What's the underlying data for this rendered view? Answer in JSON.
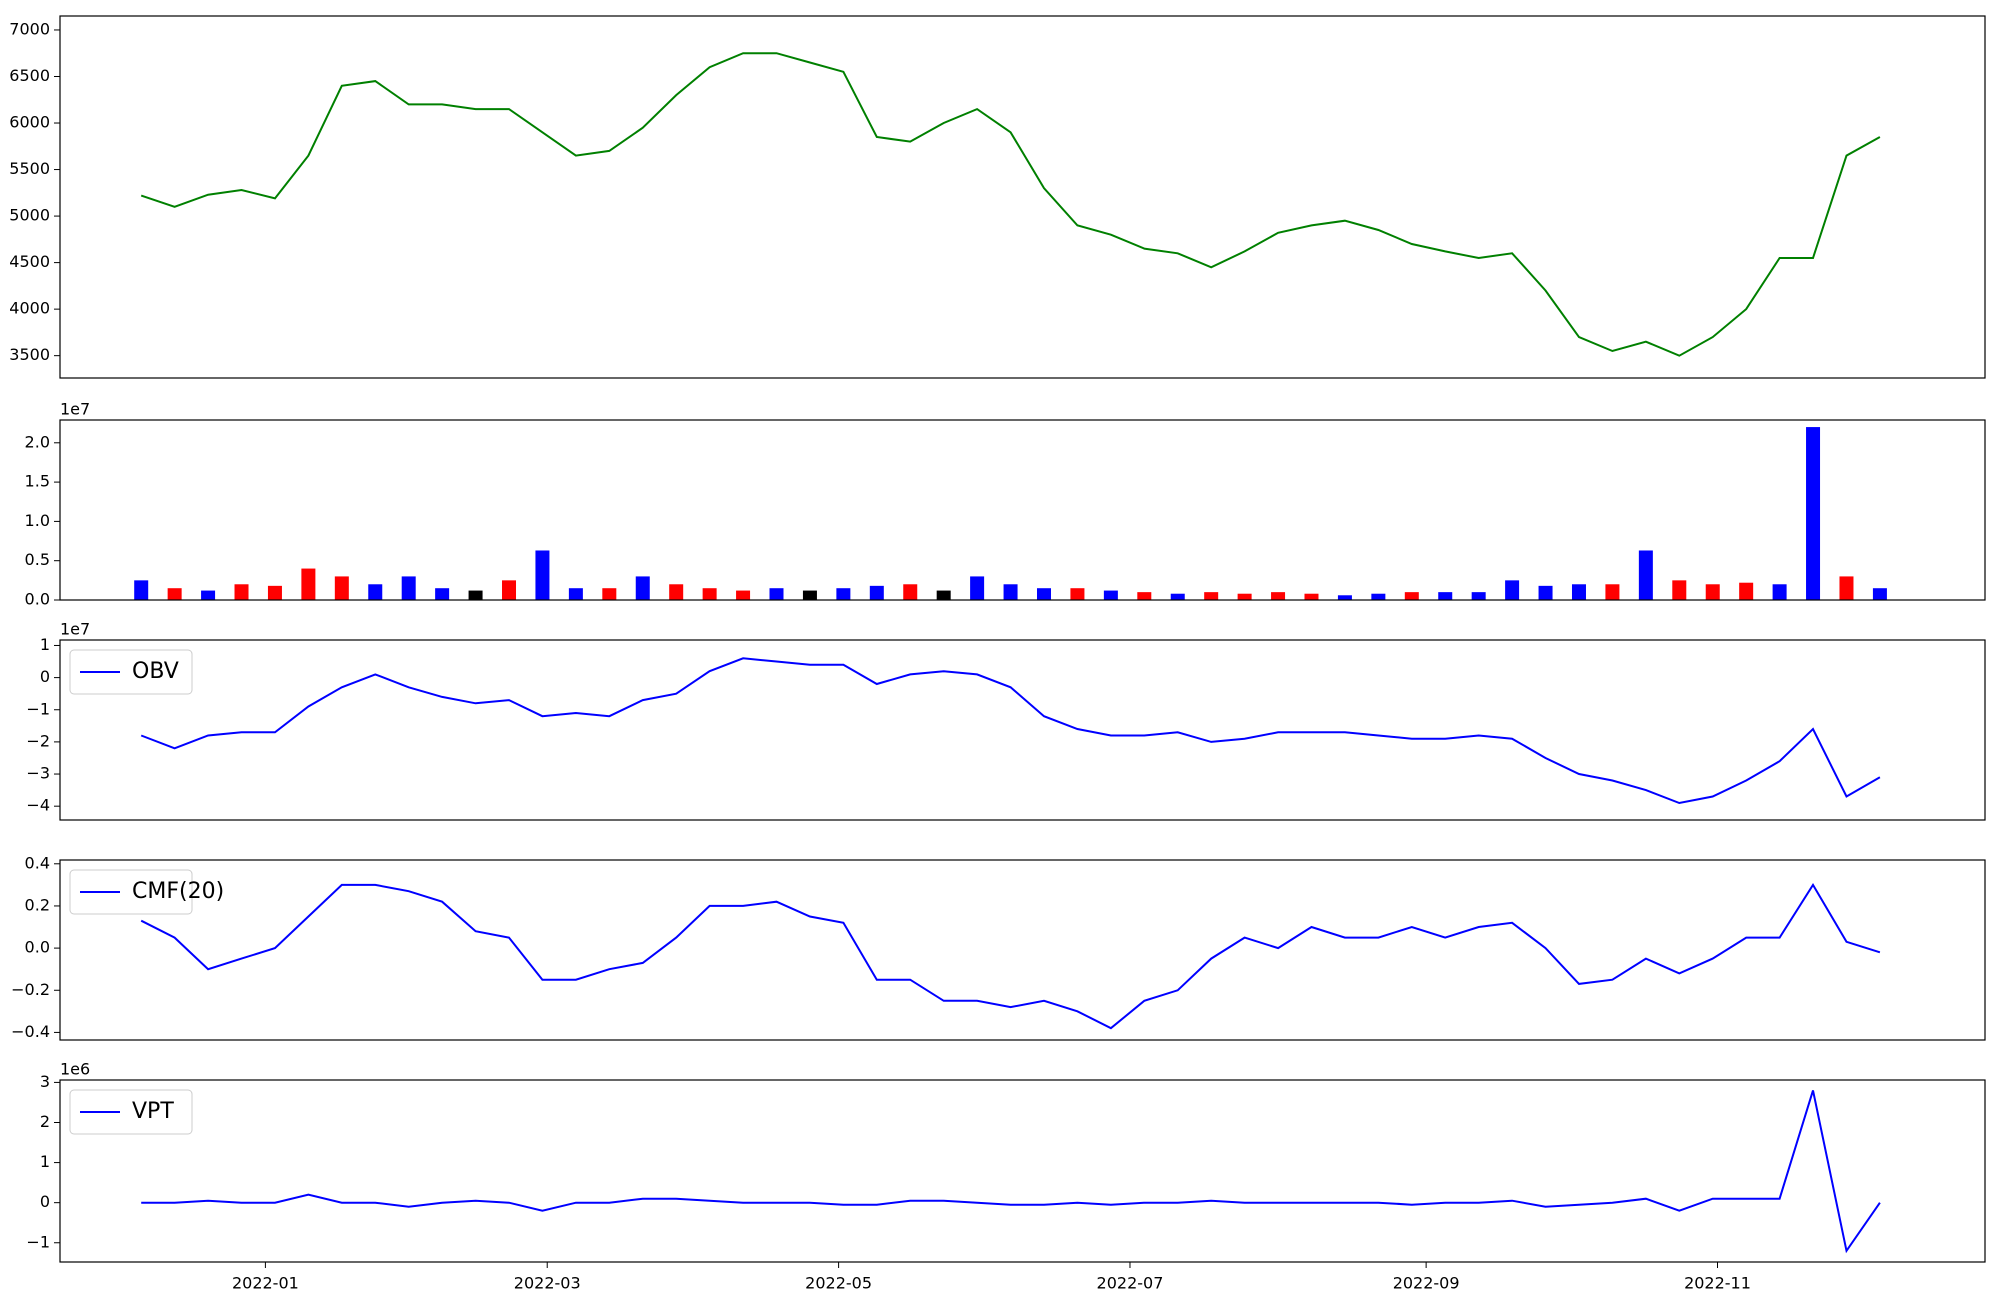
{
  "chart_data": [
    {
      "type": "line",
      "x": [
        "2021-12-06",
        "2021-12-13",
        "2021-12-20",
        "2021-12-27",
        "2022-01-03",
        "2022-01-10",
        "2022-01-17",
        "2022-01-24",
        "2022-01-31",
        "2022-02-07",
        "2022-02-14",
        "2022-02-21",
        "2022-02-28",
        "2022-03-07",
        "2022-03-14",
        "2022-03-21",
        "2022-03-28",
        "2022-04-04",
        "2022-04-11",
        "2022-04-18",
        "2022-04-25",
        "2022-05-02",
        "2022-05-09",
        "2022-05-16",
        "2022-05-23",
        "2022-05-30",
        "2022-06-06",
        "2022-06-13",
        "2022-06-20",
        "2022-06-27",
        "2022-07-04",
        "2022-07-11",
        "2022-07-18",
        "2022-07-25",
        "2022-08-01",
        "2022-08-08",
        "2022-08-15",
        "2022-08-22",
        "2022-08-29",
        "2022-09-05",
        "2022-09-12",
        "2022-09-19",
        "2022-09-26",
        "2022-10-03",
        "2022-10-10",
        "2022-10-17",
        "2022-10-24",
        "2022-10-31",
        "2022-11-07",
        "2022-11-14",
        "2022-11-21",
        "2022-11-28",
        "2022-12-05"
      ],
      "series": [
        {
          "color": "green",
          "values": [
            5220,
            5100,
            5230,
            5280,
            5190,
            5650,
            6400,
            6450,
            6200,
            6200,
            6150,
            6150,
            5900,
            5650,
            5700,
            5950,
            6300,
            6600,
            6750,
            6750,
            6650,
            6550,
            5850,
            5800,
            6000,
            6150,
            5900,
            5300,
            4900,
            4800,
            4650,
            4600,
            4450,
            4620,
            4820,
            4900,
            4950,
            4850,
            4700,
            4620,
            4550,
            4600,
            4200,
            3700,
            3550,
            3650,
            3500,
            3700,
            4000,
            4550,
            4550,
            5650,
            5850
          ]
        }
      ],
      "xlim": [
        "2021-11-19",
        "2022-12-27"
      ],
      "ylim": [
        3260,
        7150
      ],
      "yticks": [
        3500,
        4000,
        4500,
        5000,
        5500,
        6000,
        6500,
        7000
      ]
    },
    {
      "type": "bar",
      "x": [
        "2021-12-06",
        "2021-12-13",
        "2021-12-20",
        "2021-12-27",
        "2022-01-03",
        "2022-01-10",
        "2022-01-17",
        "2022-01-24",
        "2022-01-31",
        "2022-02-07",
        "2022-02-14",
        "2022-02-21",
        "2022-02-28",
        "2022-03-07",
        "2022-03-14",
        "2022-03-21",
        "2022-03-28",
        "2022-04-04",
        "2022-04-11",
        "2022-04-18",
        "2022-04-25",
        "2022-05-02",
        "2022-05-09",
        "2022-05-16",
        "2022-05-23",
        "2022-05-30",
        "2022-06-06",
        "2022-06-13",
        "2022-06-20",
        "2022-06-27",
        "2022-07-04",
        "2022-07-11",
        "2022-07-18",
        "2022-07-25",
        "2022-08-01",
        "2022-08-08",
        "2022-08-15",
        "2022-08-22",
        "2022-08-29",
        "2022-09-05",
        "2022-09-12",
        "2022-09-19",
        "2022-09-26",
        "2022-10-03",
        "2022-10-10",
        "2022-10-17",
        "2022-10-24",
        "2022-10-31",
        "2022-11-07",
        "2022-11-14",
        "2022-11-21",
        "2022-11-28",
        "2022-12-05"
      ],
      "values": [
        0.25,
        0.15,
        0.12,
        0.2,
        0.18,
        0.4,
        0.3,
        0.2,
        0.3,
        0.15,
        0.12,
        0.25,
        0.63,
        0.15,
        0.15,
        0.3,
        0.2,
        0.15,
        0.12,
        0.15,
        0.12,
        0.15,
        0.18,
        0.2,
        0.12,
        0.3,
        0.2,
        0.15,
        0.15,
        0.12,
        0.1,
        0.08,
        0.1,
        0.08,
        0.1,
        0.08,
        0.06,
        0.08,
        0.1,
        0.1,
        0.1,
        0.25,
        0.18,
        0.2,
        0.2,
        0.63,
        0.25,
        0.2,
        0.22,
        0.2,
        2.2,
        0.3,
        0.15
      ],
      "colors": [
        "blue",
        "red",
        "blue",
        "red",
        "red",
        "red",
        "red",
        "blue",
        "blue",
        "blue",
        "black",
        "red",
        "blue",
        "blue",
        "red",
        "blue",
        "red",
        "red",
        "red",
        "blue",
        "black",
        "blue",
        "blue",
        "red",
        "black",
        "blue",
        "blue",
        "blue",
        "red",
        "blue",
        "red",
        "blue",
        "red",
        "red",
        "red",
        "red",
        "blue",
        "blue",
        "red",
        "blue",
        "blue",
        "blue",
        "blue",
        "blue",
        "red",
        "blue",
        "red",
        "red",
        "red",
        "blue",
        "blue",
        "red",
        "blue"
      ],
      "xlim": [
        "2021-11-19",
        "2022-12-27"
      ],
      "offset_label": "1e7",
      "ylim": [
        0,
        2.29
      ],
      "yticks": [
        {
          "value": 0,
          "label": "0.0"
        },
        0.5,
        {
          "value": 1,
          "label": "1.0"
        },
        1.5,
        {
          "value": 2,
          "label": "2.0"
        }
      ]
    },
    {
      "type": "line",
      "x": [
        "2021-12-06",
        "2021-12-13",
        "2021-12-20",
        "2021-12-27",
        "2022-01-03",
        "2022-01-10",
        "2022-01-17",
        "2022-01-24",
        "2022-01-31",
        "2022-02-07",
        "2022-02-14",
        "2022-02-21",
        "2022-02-28",
        "2022-03-07",
        "2022-03-14",
        "2022-03-21",
        "2022-03-28",
        "2022-04-04",
        "2022-04-11",
        "2022-04-18",
        "2022-04-25",
        "2022-05-02",
        "2022-05-09",
        "2022-05-16",
        "2022-05-23",
        "2022-05-30",
        "2022-06-06",
        "2022-06-13",
        "2022-06-20",
        "2022-06-27",
        "2022-07-04",
        "2022-07-11",
        "2022-07-18",
        "2022-07-25",
        "2022-08-01",
        "2022-08-08",
        "2022-08-15",
        "2022-08-22",
        "2022-08-29",
        "2022-09-05",
        "2022-09-12",
        "2022-09-19",
        "2022-09-26",
        "2022-10-03",
        "2022-10-10",
        "2022-10-17",
        "2022-10-24",
        "2022-10-31",
        "2022-11-07",
        "2022-11-14",
        "2022-11-21",
        "2022-11-28",
        "2022-12-05"
      ],
      "series": [
        {
          "name": "OBV",
          "color": "blue",
          "values": [
            -1.8,
            -2.2,
            -1.8,
            -1.7,
            -1.7,
            -0.9,
            -0.3,
            0.1,
            -0.3,
            -0.6,
            -0.8,
            -0.7,
            -1.2,
            -1.1,
            -1.2,
            -0.7,
            -0.5,
            0.2,
            0.6,
            0.5,
            0.4,
            0.4,
            -0.2,
            0.1,
            0.2,
            0.1,
            -0.3,
            -1.2,
            -1.6,
            -1.8,
            -1.8,
            -1.7,
            -2.0,
            -1.9,
            -1.7,
            -1.7,
            -1.7,
            -1.8,
            -1.9,
            -1.9,
            -1.8,
            -1.9,
            -2.5,
            -3.0,
            -3.2,
            -3.5,
            -3.9,
            -3.7,
            -3.2,
            -2.6,
            -1.6,
            -3.7,
            -3.1
          ]
        }
      ],
      "legend": "upper left",
      "xlim": [
        "2021-11-19",
        "2022-12-27"
      ],
      "offset_label": "1e7",
      "ylim": [
        -4.43,
        1.17
      ],
      "yticks": [
        {
          "value": -4,
          "label": "−4"
        },
        {
          "value": -3,
          "label": "−3"
        },
        {
          "value": -2,
          "label": "−2"
        },
        {
          "value": -1,
          "label": "−1"
        },
        0,
        1
      ]
    },
    {
      "type": "line",
      "x": [
        "2021-12-06",
        "2021-12-13",
        "2021-12-20",
        "2021-12-27",
        "2022-01-03",
        "2022-01-10",
        "2022-01-17",
        "2022-01-24",
        "2022-01-31",
        "2022-02-07",
        "2022-02-14",
        "2022-02-21",
        "2022-02-28",
        "2022-03-07",
        "2022-03-14",
        "2022-03-21",
        "2022-03-28",
        "2022-04-04",
        "2022-04-11",
        "2022-04-18",
        "2022-04-25",
        "2022-05-02",
        "2022-05-09",
        "2022-05-16",
        "2022-05-23",
        "2022-05-30",
        "2022-06-06",
        "2022-06-13",
        "2022-06-20",
        "2022-06-27",
        "2022-07-04",
        "2022-07-11",
        "2022-07-18",
        "2022-07-25",
        "2022-08-01",
        "2022-08-08",
        "2022-08-15",
        "2022-08-22",
        "2022-08-29",
        "2022-09-05",
        "2022-09-12",
        "2022-09-19",
        "2022-09-26",
        "2022-10-03",
        "2022-10-10",
        "2022-10-17",
        "2022-10-24",
        "2022-10-31",
        "2022-11-07",
        "2022-11-14",
        "2022-11-21",
        "2022-11-28",
        "2022-12-05"
      ],
      "series": [
        {
          "name": "CMF(20)",
          "color": "blue",
          "values": [
            0.13,
            0.05,
            -0.1,
            -0.05,
            0.0,
            0.15,
            0.3,
            0.3,
            0.27,
            0.22,
            0.08,
            0.05,
            -0.15,
            -0.15,
            -0.1,
            -0.07,
            0.05,
            0.2,
            0.2,
            0.22,
            0.15,
            0.12,
            -0.15,
            -0.15,
            -0.25,
            -0.25,
            -0.28,
            -0.25,
            -0.3,
            -0.38,
            -0.25,
            -0.2,
            -0.05,
            0.05,
            0.0,
            0.1,
            0.05,
            0.05,
            0.1,
            0.05,
            0.1,
            0.12,
            0.0,
            -0.17,
            -0.15,
            -0.05,
            -0.12,
            -0.05,
            0.05,
            0.05,
            0.3,
            0.03,
            -0.02
          ]
        }
      ],
      "legend": "upper left",
      "xlim": [
        "2021-11-19",
        "2022-12-27"
      ],
      "ylim": [
        -0.436,
        0.418
      ],
      "yticks": [
        {
          "value": -0.4,
          "label": "−0.4"
        },
        {
          "value": -0.2,
          "label": "−0.2"
        },
        {
          "value": 0,
          "label": "0.0"
        },
        0.2,
        0.4
      ]
    },
    {
      "type": "line",
      "x": [
        "2021-12-06",
        "2021-12-13",
        "2021-12-20",
        "2021-12-27",
        "2022-01-03",
        "2022-01-10",
        "2022-01-17",
        "2022-01-24",
        "2022-01-31",
        "2022-02-07",
        "2022-02-14",
        "2022-02-21",
        "2022-02-28",
        "2022-03-07",
        "2022-03-14",
        "2022-03-21",
        "2022-03-28",
        "2022-04-04",
        "2022-04-11",
        "2022-04-18",
        "2022-04-25",
        "2022-05-02",
        "2022-05-09",
        "2022-05-16",
        "2022-05-23",
        "2022-05-30",
        "2022-06-06",
        "2022-06-13",
        "2022-06-20",
        "2022-06-27",
        "2022-07-04",
        "2022-07-11",
        "2022-07-18",
        "2022-07-25",
        "2022-08-01",
        "2022-08-08",
        "2022-08-15",
        "2022-08-22",
        "2022-08-29",
        "2022-09-05",
        "2022-09-12",
        "2022-09-19",
        "2022-09-26",
        "2022-10-03",
        "2022-10-10",
        "2022-10-17",
        "2022-10-24",
        "2022-10-31",
        "2022-11-07",
        "2022-11-14",
        "2022-11-21",
        "2022-11-28",
        "2022-12-05"
      ],
      "series": [
        {
          "name": "VPT",
          "color": "blue",
          "values": [
            0,
            0,
            0.05,
            0,
            0,
            0.2,
            0,
            0,
            -0.1,
            0,
            0.05,
            0,
            -0.2,
            0,
            0,
            0.1,
            0.1,
            0.05,
            0,
            0,
            0,
            -0.05,
            -0.05,
            0.05,
            0.05,
            0,
            -0.05,
            -0.05,
            0,
            -0.05,
            0,
            0,
            0.05,
            0,
            0,
            0,
            0,
            0,
            -0.05,
            0,
            0,
            0.05,
            -0.1,
            -0.05,
            0,
            0.1,
            -0.2,
            0.1,
            0.1,
            0.1,
            2.8,
            -1.2,
            0
          ]
        }
      ],
      "legend": "upper left",
      "xlim": [
        "2021-11-19",
        "2022-12-27"
      ],
      "offset_label": "1e6",
      "ylim": [
        -1.48,
        3.06
      ],
      "yticks": [
        {
          "value": -1,
          "label": "−1"
        },
        0,
        1,
        2,
        3
      ],
      "xticks": [
        "2022-01",
        "2022-03",
        "2022-05",
        "2022-07",
        "2022-09",
        "2022-11"
      ]
    }
  ]
}
